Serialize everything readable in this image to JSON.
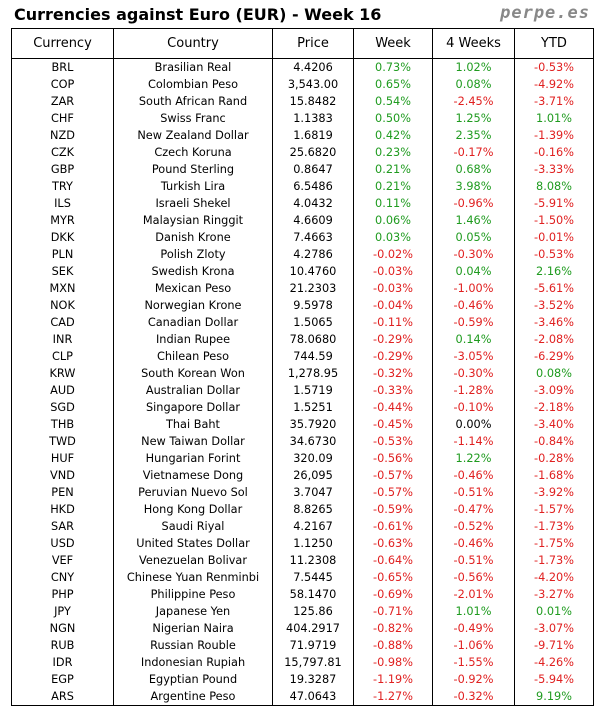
{
  "header": {
    "title": "Currencies against Euro (EUR) - Week 16",
    "brand": "perpe.es"
  },
  "table": {
    "columns": [
      "Currency",
      "Country",
      "Price",
      "Week",
      "4 Weeks",
      "YTD"
    ],
    "rows": [
      [
        "BRL",
        "Brasilian Real",
        "4.4206",
        "0.73%",
        "1.02%",
        "-0.53%"
      ],
      [
        "COP",
        "Colombian Peso",
        "3,543.00",
        "0.65%",
        "0.08%",
        "-4.92%"
      ],
      [
        "ZAR",
        "South African Rand",
        "15.8482",
        "0.54%",
        "-2.45%",
        "-3.71%"
      ],
      [
        "CHF",
        "Swiss Franc",
        "1.1383",
        "0.50%",
        "1.25%",
        "1.01%"
      ],
      [
        "NZD",
        "New Zealand Dollar",
        "1.6819",
        "0.42%",
        "2.35%",
        "-1.39%"
      ],
      [
        "CZK",
        "Czech Koruna",
        "25.6820",
        "0.23%",
        "-0.17%",
        "-0.16%"
      ],
      [
        "GBP",
        "Pound Sterling",
        "0.8647",
        "0.21%",
        "0.68%",
        "-3.33%"
      ],
      [
        "TRY",
        "Turkish Lira",
        "6.5486",
        "0.21%",
        "3.98%",
        "8.08%"
      ],
      [
        "ILS",
        "Israeli Shekel",
        "4.0432",
        "0.11%",
        "-0.96%",
        "-5.91%"
      ],
      [
        "MYR",
        "Malaysian Ringgit",
        "4.6609",
        "0.06%",
        "1.46%",
        "-1.50%"
      ],
      [
        "DKK",
        "Danish Krone",
        "7.4663",
        "0.03%",
        "0.05%",
        "-0.01%"
      ],
      [
        "PLN",
        "Polish Zloty",
        "4.2786",
        "-0.02%",
        "-0.30%",
        "-0.53%"
      ],
      [
        "SEK",
        "Swedish Krona",
        "10.4760",
        "-0.03%",
        "0.04%",
        "2.16%"
      ],
      [
        "MXN",
        "Mexican Peso",
        "21.2303",
        "-0.03%",
        "-1.00%",
        "-5.61%"
      ],
      [
        "NOK",
        "Norwegian Krone",
        "9.5978",
        "-0.04%",
        "-0.46%",
        "-3.52%"
      ],
      [
        "CAD",
        "Canadian Dollar",
        "1.5065",
        "-0.11%",
        "-0.59%",
        "-3.46%"
      ],
      [
        "INR",
        "Indian Rupee",
        "78.0680",
        "-0.29%",
        "0.14%",
        "-2.08%"
      ],
      [
        "CLP",
        "Chilean Peso",
        "744.59",
        "-0.29%",
        "-3.05%",
        "-6.29%"
      ],
      [
        "KRW",
        "South Korean Won",
        "1,278.95",
        "-0.32%",
        "-0.30%",
        "0.08%"
      ],
      [
        "AUD",
        "Australian Dollar",
        "1.5719",
        "-0.33%",
        "-1.28%",
        "-3.09%"
      ],
      [
        "SGD",
        "Singapore Dollar",
        "1.5251",
        "-0.44%",
        "-0.10%",
        "-2.18%"
      ],
      [
        "THB",
        "Thai Baht",
        "35.7920",
        "-0.45%",
        "0.00%",
        "-3.40%"
      ],
      [
        "TWD",
        "New Taiwan Dollar",
        "34.6730",
        "-0.53%",
        "-1.14%",
        "-0.84%"
      ],
      [
        "HUF",
        "Hungarian Forint",
        "320.09",
        "-0.56%",
        "1.22%",
        "-0.28%"
      ],
      [
        "VND",
        "Vietnamese Dong",
        "26,095",
        "-0.57%",
        "-0.46%",
        "-1.68%"
      ],
      [
        "PEN",
        "Peruvian Nuevo Sol",
        "3.7047",
        "-0.57%",
        "-0.51%",
        "-3.92%"
      ],
      [
        "HKD",
        "Hong Kong Dollar",
        "8.8265",
        "-0.59%",
        "-0.47%",
        "-1.57%"
      ],
      [
        "SAR",
        "Saudi Riyal",
        "4.2167",
        "-0.61%",
        "-0.52%",
        "-1.73%"
      ],
      [
        "USD",
        "United States Dollar",
        "1.1250",
        "-0.63%",
        "-0.46%",
        "-1.75%"
      ],
      [
        "VEF",
        "Venezuelan Bolivar",
        "11.2308",
        "-0.64%",
        "-0.51%",
        "-1.73%"
      ],
      [
        "CNY",
        "Chinese Yuan Renminbi",
        "7.5445",
        "-0.65%",
        "-0.56%",
        "-4.20%"
      ],
      [
        "PHP",
        "Philippine Peso",
        "58.1470",
        "-0.69%",
        "-2.01%",
        "-3.27%"
      ],
      [
        "JPY",
        "Japanese Yen",
        "125.86",
        "-0.71%",
        "1.01%",
        "0.01%"
      ],
      [
        "NGN",
        "Nigerian Naira",
        "404.2917",
        "-0.82%",
        "-0.49%",
        "-3.07%"
      ],
      [
        "RUB",
        "Russian Rouble",
        "71.9719",
        "-0.88%",
        "-1.06%",
        "-9.71%"
      ],
      [
        "IDR",
        "Indonesian Rupiah",
        "15,797.81",
        "-0.98%",
        "-1.55%",
        "-4.26%"
      ],
      [
        "EGP",
        "Egyptian Pound",
        "19.3287",
        "-1.19%",
        "-0.92%",
        "-5.94%"
      ],
      [
        "ARS",
        "Argentine Peso",
        "47.0643",
        "-1.27%",
        "-0.32%",
        "9.19%"
      ]
    ]
  },
  "colors": {
    "positive": "#1f9b1f",
    "negative": "#e02020",
    "neutral": "#000000",
    "brand": "#888888"
  }
}
